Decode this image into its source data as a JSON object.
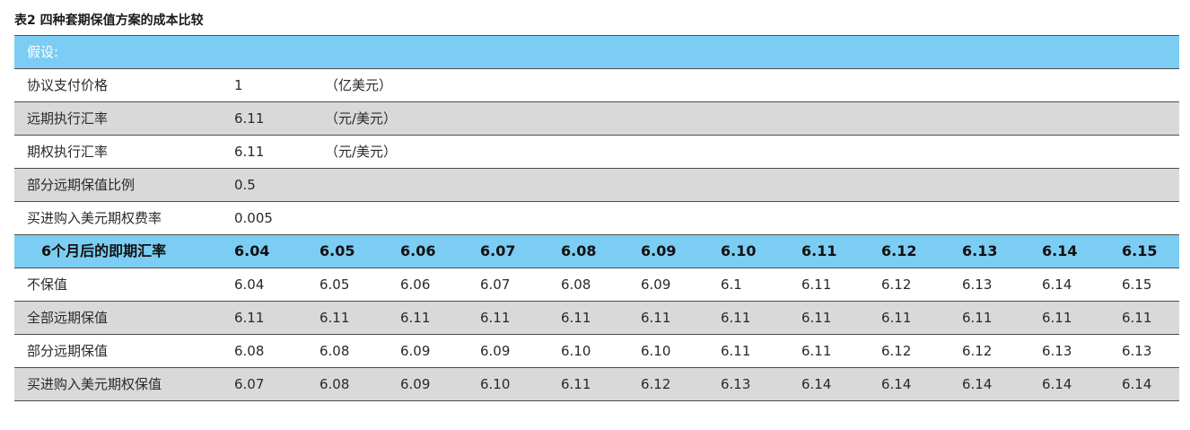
{
  "caption": "表2 四种套期保值方案的成本比较",
  "assumption_label": "假设:",
  "params": [
    {
      "label": "协议支付价格",
      "value": "1",
      "unit": "（亿美元）"
    },
    {
      "label": "远期执行汇率",
      "value": "6.11",
      "unit": "（元/美元）"
    },
    {
      "label": "期权执行汇率",
      "value": "6.11",
      "unit": "（元/美元）"
    },
    {
      "label": "部分远期保值比例",
      "value": "0.5",
      "unit": ""
    },
    {
      "label": "买进购入美元期权费率",
      "value": "0.005",
      "unit": ""
    }
  ],
  "header": {
    "label": "6个月后的即期汇率",
    "values": [
      "6.04",
      "6.05",
      "6.06",
      "6.07",
      "6.08",
      "6.09",
      "6.10",
      "6.11",
      "6.12",
      "6.13",
      "6.14",
      "6.15"
    ]
  },
  "rows": [
    {
      "label": "不保值",
      "values": [
        "6.04",
        "6.05",
        "6.06",
        "6.07",
        "6.08",
        "6.09",
        "6.1",
        "6.11",
        "6.12",
        "6.13",
        "6.14",
        "6.15"
      ]
    },
    {
      "label": "全部远期保值",
      "values": [
        "6.11",
        "6.11",
        "6.11",
        "6.11",
        "6.11",
        "6.11",
        "6.11",
        "6.11",
        "6.11",
        "6.11",
        "6.11",
        "6.11"
      ]
    },
    {
      "label": "部分远期保值",
      "values": [
        "6.08",
        "6.08",
        "6.09",
        "6.09",
        "6.10",
        "6.10",
        "6.11",
        "6.11",
        "6.12",
        "6.12",
        "6.13",
        "6.13"
      ]
    },
    {
      "label": "买进购入美元期权保值",
      "values": [
        "6.07",
        "6.08",
        "6.09",
        "6.10",
        "6.11",
        "6.12",
        "6.13",
        "6.14",
        "6.14",
        "6.14",
        "6.14",
        "6.14"
      ]
    }
  ],
  "colors": {
    "header_blue": "#7ccdf3",
    "stripe_gray": "#d9d9d9",
    "rule": "#4d4d4d"
  }
}
